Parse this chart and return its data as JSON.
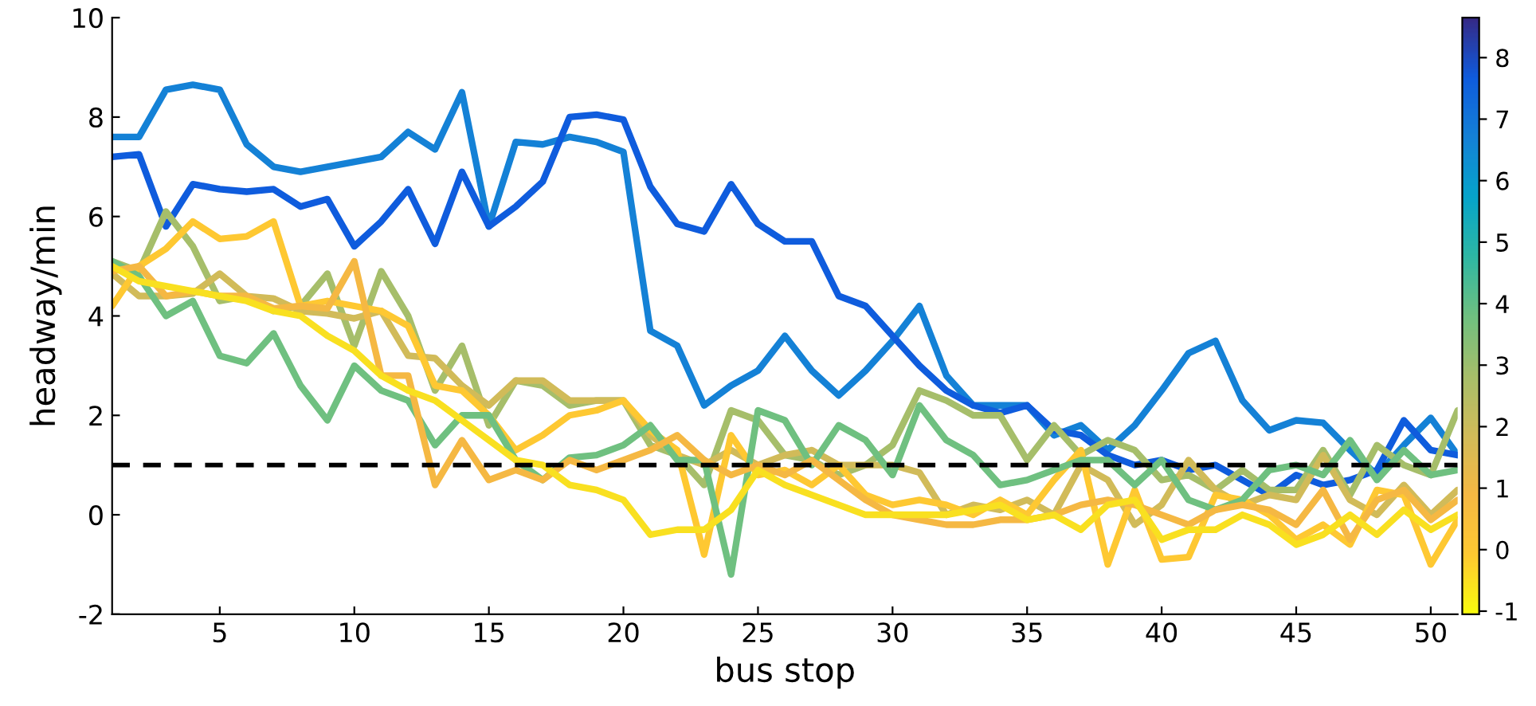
{
  "chart_data": {
    "type": "line",
    "xlabel": "bus stop",
    "ylabel": "headway/min",
    "x": [
      1,
      2,
      3,
      4,
      5,
      6,
      7,
      8,
      9,
      10,
      11,
      12,
      13,
      14,
      15,
      16,
      17,
      18,
      19,
      20,
      21,
      22,
      23,
      24,
      25,
      26,
      27,
      28,
      29,
      30,
      31,
      32,
      33,
      34,
      35,
      36,
      37,
      38,
      39,
      40,
      41,
      42,
      43,
      44,
      45,
      46,
      47,
      48,
      49,
      50,
      51
    ],
    "series": [
      {
        "color": "#1481d6",
        "values": [
          7.6,
          7.6,
          8.55,
          8.65,
          8.55,
          7.45,
          7.0,
          6.9,
          7.0,
          7.1,
          7.2,
          7.7,
          7.35,
          8.5,
          5.8,
          7.5,
          7.45,
          7.6,
          7.5,
          7.3,
          3.7,
          3.4,
          2.2,
          2.6,
          2.9,
          3.6,
          2.9,
          2.4,
          2.9,
          3.5,
          4.2,
          2.8,
          2.2,
          2.2,
          2.2,
          1.6,
          1.8,
          1.3,
          1.8,
          2.5,
          3.25,
          3.5,
          2.3,
          1.7,
          1.9,
          1.85,
          1.3,
          0.8,
          1.4,
          1.95,
          1.2
        ]
      },
      {
        "color": "#0f5cdd",
        "values": [
          7.2,
          7.25,
          5.8,
          6.65,
          6.55,
          6.5,
          6.55,
          6.2,
          6.35,
          5.4,
          5.9,
          6.55,
          5.45,
          6.9,
          5.8,
          6.2,
          6.7,
          8.0,
          8.05,
          7.95,
          6.6,
          5.85,
          5.7,
          6.65,
          5.85,
          5.5,
          5.5,
          4.4,
          4.2,
          3.6,
          3.0,
          2.5,
          2.2,
          2.05,
          2.2,
          1.7,
          1.6,
          1.2,
          1.0,
          1.1,
          0.9,
          1.0,
          0.7,
          0.4,
          0.8,
          0.6,
          0.7,
          0.9,
          1.9,
          1.3,
          1.2
        ]
      },
      {
        "color": "#a6be6a",
        "values": [
          5.1,
          4.9,
          6.1,
          5.4,
          4.3,
          4.4,
          4.1,
          4.2,
          4.85,
          3.4,
          4.9,
          4.0,
          2.5,
          3.4,
          1.8,
          2.7,
          2.6,
          2.2,
          2.3,
          2.3,
          1.4,
          1.2,
          0.6,
          2.1,
          1.9,
          1.2,
          1.1,
          0.8,
          1.0,
          1.4,
          2.5,
          2.3,
          2.0,
          2.0,
          1.1,
          1.8,
          1.2,
          1.5,
          1.3,
          0.7,
          0.8,
          0.5,
          0.9,
          0.5,
          0.5,
          1.3,
          0.4,
          1.4,
          1.0,
          0.8,
          2.1
        ]
      },
      {
        "color": "#d1bb59",
        "values": [
          4.85,
          4.4,
          4.4,
          4.45,
          4.85,
          4.4,
          4.35,
          4.1,
          4.05,
          3.95,
          4.1,
          3.2,
          3.15,
          2.6,
          2.2,
          2.7,
          2.7,
          2.3,
          2.3,
          2.3,
          1.6,
          1.2,
          1.0,
          1.3,
          1.0,
          1.2,
          1.3,
          1.0,
          1.0,
          1.0,
          0.85,
          0.0,
          0.2,
          0.1,
          0.3,
          0.0,
          1.0,
          0.7,
          -0.2,
          0.2,
          1.1,
          0.5,
          0.2,
          0.4,
          0.3,
          1.2,
          0.3,
          0.0,
          0.6,
          0.0,
          0.5
        ]
      },
      {
        "color": "#fec832",
        "values": [
          4.2,
          5.0,
          5.35,
          5.9,
          5.55,
          5.6,
          5.9,
          4.2,
          4.3,
          4.2,
          4.1,
          3.8,
          2.6,
          2.5,
          2.0,
          1.3,
          1.6,
          2.0,
          2.1,
          2.3,
          1.7,
          1.3,
          -0.8,
          1.6,
          0.8,
          0.9,
          0.6,
          1.0,
          0.4,
          0.2,
          0.3,
          0.2,
          0.0,
          0.3,
          0.0,
          0.7,
          1.3,
          -1.0,
          0.5,
          -0.9,
          -0.85,
          0.4,
          0.3,
          0.0,
          -0.5,
          -0.2,
          -0.6,
          0.5,
          0.4,
          -1.0,
          -0.1
        ]
      },
      {
        "color": "#6fc080",
        "values": [
          5.1,
          4.8,
          4.0,
          4.3,
          3.2,
          3.05,
          3.65,
          2.6,
          1.9,
          3.0,
          2.5,
          2.3,
          1.4,
          2.0,
          2.0,
          1.1,
          0.7,
          1.15,
          1.2,
          1.4,
          1.8,
          1.1,
          1.1,
          -1.2,
          2.1,
          1.9,
          1.0,
          1.8,
          1.5,
          0.8,
          2.2,
          1.5,
          1.2,
          0.6,
          0.7,
          0.9,
          1.1,
          1.1,
          0.6,
          1.1,
          0.3,
          0.1,
          0.3,
          0.9,
          1.0,
          0.8,
          1.5,
          0.7,
          1.3,
          0.8,
          0.9
        ]
      },
      {
        "color": "#f5b843",
        "values": [
          4.9,
          5.0,
          4.4,
          4.5,
          4.4,
          4.4,
          4.15,
          4.2,
          4.15,
          5.1,
          2.8,
          2.8,
          0.6,
          1.5,
          0.7,
          0.9,
          0.7,
          1.1,
          0.9,
          1.1,
          1.3,
          1.6,
          1.1,
          0.8,
          1.0,
          0.8,
          1.1,
          0.7,
          0.3,
          0.0,
          -0.1,
          -0.2,
          -0.2,
          -0.1,
          -0.1,
          0.0,
          0.2,
          0.3,
          0.2,
          0.0,
          -0.2,
          0.1,
          0.2,
          0.1,
          -0.2,
          0.5,
          -0.5,
          0.3,
          0.5,
          -0.1,
          0.3
        ]
      },
      {
        "color": "#f9e020",
        "values": [
          5.0,
          4.7,
          4.6,
          4.5,
          4.4,
          4.3,
          4.1,
          4.0,
          3.6,
          3.3,
          2.8,
          2.5,
          2.3,
          1.9,
          1.5,
          1.1,
          1.0,
          0.6,
          0.5,
          0.3,
          -0.4,
          -0.3,
          -0.3,
          0.1,
          0.9,
          0.6,
          0.4,
          0.2,
          0.0,
          0.0,
          0.0,
          0.0,
          0.1,
          0.2,
          -0.1,
          0.0,
          -0.3,
          0.2,
          0.3,
          -0.5,
          -0.3,
          -0.3,
          0.0,
          -0.2,
          -0.6,
          -0.4,
          0.0,
          -0.4,
          0.1,
          -0.3,
          0.0
        ]
      }
    ],
    "colors": [
      "#f9fb0e",
      "#fec832",
      "#f5b843",
      "#d1bb59",
      "#a6be6a",
      "#6fc080",
      "#2eb7a4",
      "#06a4ca",
      "#1481d6",
      "#0f5cdd",
      "#352a87"
    ],
    "clim": [
      -1.05,
      8.65
    ],
    "cticks": [
      -1,
      0,
      1,
      2,
      3,
      4,
      5,
      6,
      7,
      8
    ],
    "xlim": [
      1,
      51
    ],
    "xticks": [
      5,
      10,
      15,
      20,
      25,
      30,
      35,
      40,
      45,
      50
    ],
    "ylim": [
      -2,
      10
    ],
    "yticks": [
      -2,
      0,
      2,
      4,
      6,
      8,
      10
    ],
    "ref_lines": [
      {
        "axis": "y",
        "value": 1,
        "color": "#000000",
        "line_style": "dashed"
      }
    ],
    "grid": false,
    "legend": false
  }
}
